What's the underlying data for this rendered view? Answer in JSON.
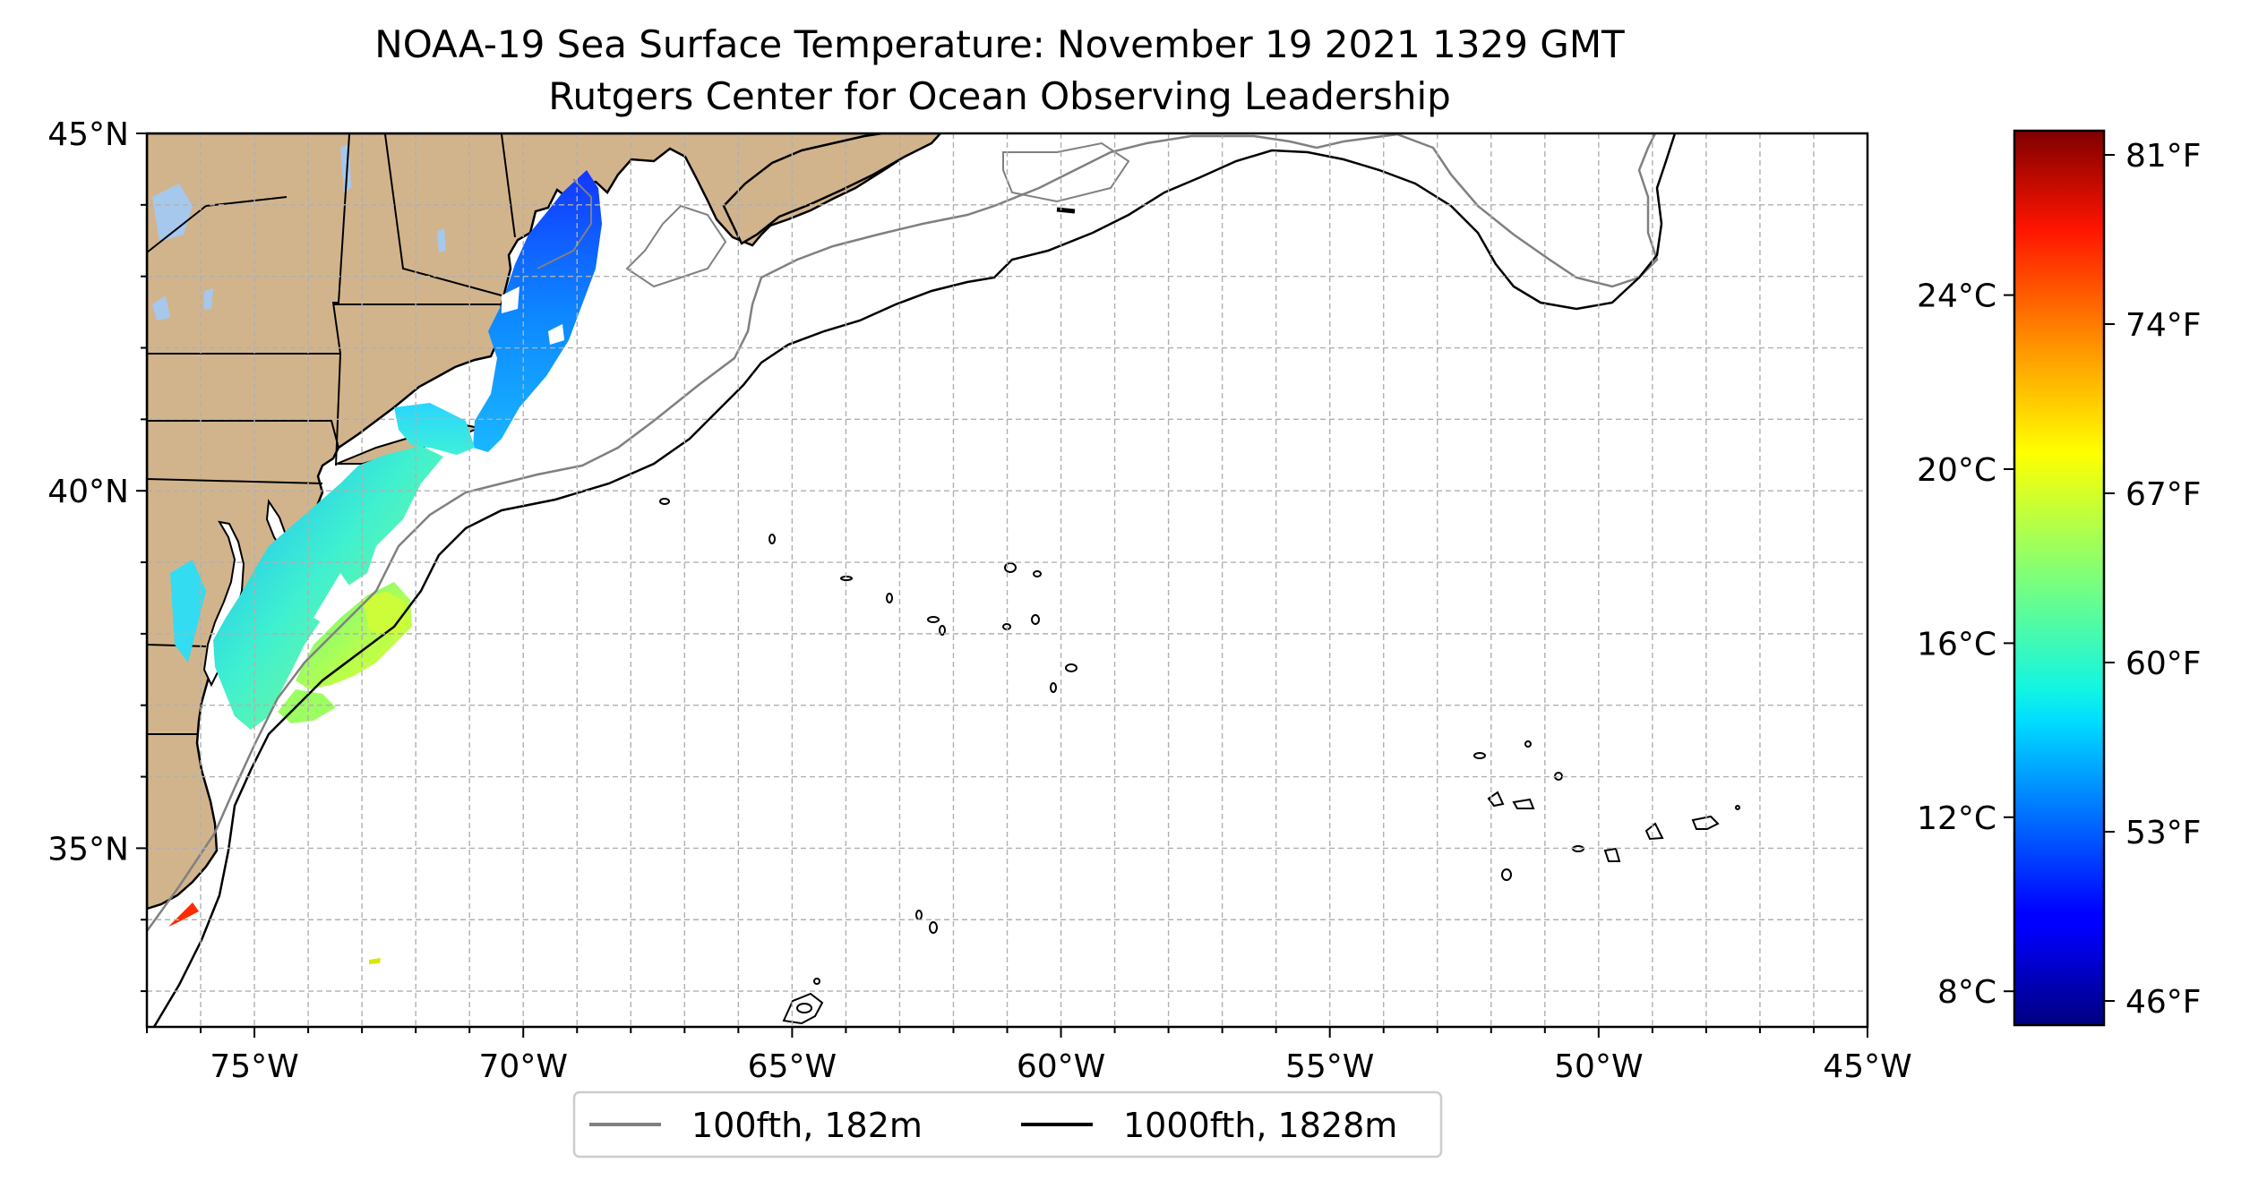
{
  "title": {
    "line1": "NOAA-19 Sea Surface Temperature: November 19 2021 1329 GMT",
    "line2": "Rutgers Center for Ocean Observing Leadership"
  },
  "map": {
    "lon_range": [
      -77,
      -45
    ],
    "lat_range": [
      32.5,
      45
    ],
    "grid": "dashed",
    "x_ticks": [
      {
        "lon": -75,
        "label": "75°W"
      },
      {
        "lon": -70,
        "label": "70°W"
      },
      {
        "lon": -65,
        "label": "65°W"
      },
      {
        "lon": -60,
        "label": "60°W"
      },
      {
        "lon": -55,
        "label": "55°W"
      },
      {
        "lon": -50,
        "label": "50°W"
      },
      {
        "lon": -45,
        "label": "45°W"
      }
    ],
    "y_ticks": [
      {
        "lat": 45,
        "label": "45°N"
      },
      {
        "lat": 40,
        "label": "40°N"
      },
      {
        "lat": 35,
        "label": "35°N"
      }
    ],
    "colors": {
      "land": "#d2b48c",
      "lakes": "#a6c8ec",
      "isobath_100": "#808080",
      "isobath_1000": "#000000",
      "grid": "#b0b0b0"
    }
  },
  "colorbar": {
    "colormap": "jet",
    "fahrenheit_ticks": [
      {
        "value": 81,
        "label": "81°F"
      },
      {
        "value": 74,
        "label": "74°F"
      },
      {
        "value": 67,
        "label": "67°F"
      },
      {
        "value": 60,
        "label": "60°F"
      },
      {
        "value": 53,
        "label": "53°F"
      },
      {
        "value": 46,
        "label": "46°F"
      }
    ],
    "celsius_ticks": [
      {
        "value": 24,
        "label": "24°C"
      },
      {
        "value": 20,
        "label": "20°C"
      },
      {
        "value": 16,
        "label": "16°C"
      },
      {
        "value": 12,
        "label": "12°C"
      },
      {
        "value": 8,
        "label": "8°C"
      }
    ],
    "range_f": [
      45,
      82
    ]
  },
  "legend": {
    "items": [
      {
        "label": "100fth, 182m",
        "color": "#808080"
      },
      {
        "label": "1000fth, 1828m",
        "color": "#000000"
      }
    ]
  }
}
